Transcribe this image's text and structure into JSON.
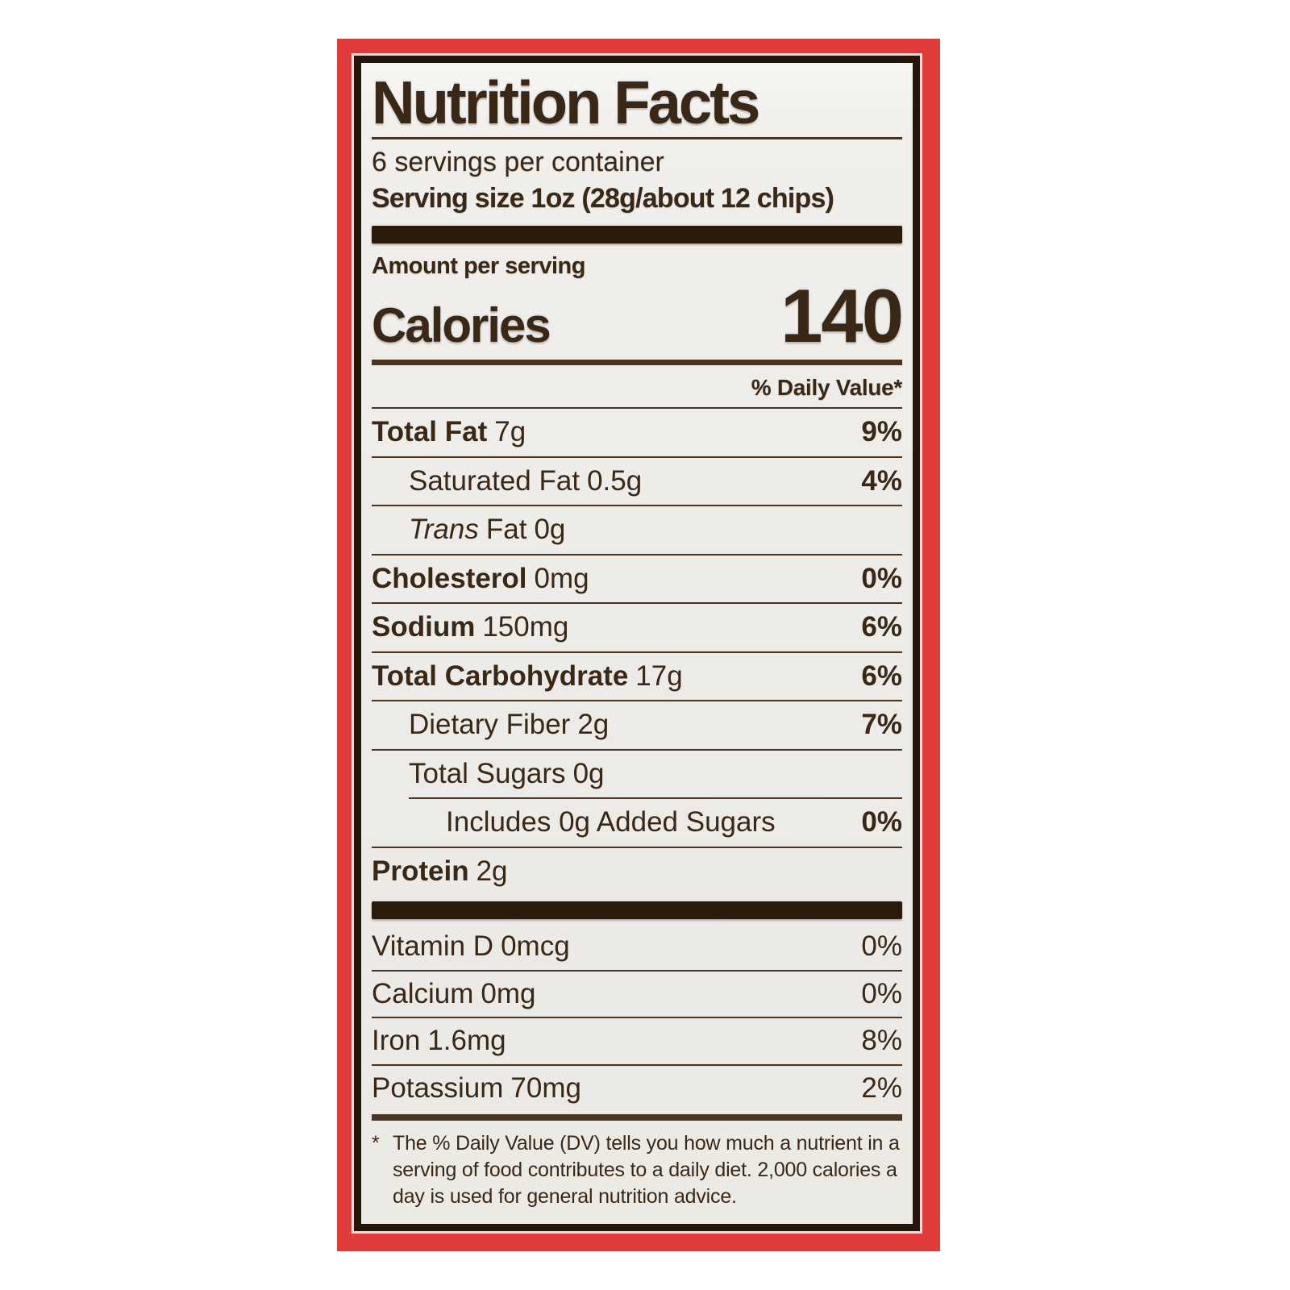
{
  "colors": {
    "frame": "#e23b3c",
    "ink": "#3a2817",
    "bar": "#2b1b0b",
    "rule": "#4b3420",
    "labelbg": "#f0eeea",
    "page": "#ffffff"
  },
  "label": {
    "title": "Nutrition Facts",
    "servings_per_container": "6 servings per container",
    "serving_size": "Serving size 1oz (28g/about 12 chips)",
    "amount_per_serving": "Amount per serving",
    "calories_word": "Calories",
    "calories_value": "140",
    "dv_header": "% Daily Value*",
    "nutrients": [
      {
        "name": "Total Fat",
        "amount": "7g",
        "dv": "9%"
      },
      {
        "name": "Saturated Fat",
        "amount": "0.5g",
        "dv": "4%"
      },
      {
        "name_italic": "Trans",
        "name": "Fat",
        "amount": "0g"
      },
      {
        "name": "Cholesterol",
        "amount": "0mg",
        "dv": "0%"
      },
      {
        "name": "Sodium",
        "amount": "150mg",
        "dv": "6%"
      },
      {
        "name": "Total Carbohydrate",
        "amount": "17g",
        "dv": "6%"
      },
      {
        "name": "Dietary Fiber",
        "amount": "2g",
        "dv": "7%"
      },
      {
        "name": "Total Sugars",
        "amount": "0g"
      },
      {
        "name": "Includes 0g Added Sugars",
        "dv": "0%"
      },
      {
        "name": "Protein",
        "amount": "2g"
      }
    ],
    "vitamins": [
      {
        "name": "Vitamin D",
        "amount": "0mcg",
        "dv": "0%"
      },
      {
        "name": "Calcium",
        "amount": "0mg",
        "dv": "0%"
      },
      {
        "name": "Iron",
        "amount": "1.6mg",
        "dv": "8%"
      },
      {
        "name": "Potassium",
        "amount": "70mg",
        "dv": "2%"
      }
    ],
    "footnote_marker": "*",
    "footnote": "The % Daily Value (DV) tells you how much a nutrient in a serving of food contributes to a daily diet. 2,000 calories a day is used for general nutrition advice."
  }
}
